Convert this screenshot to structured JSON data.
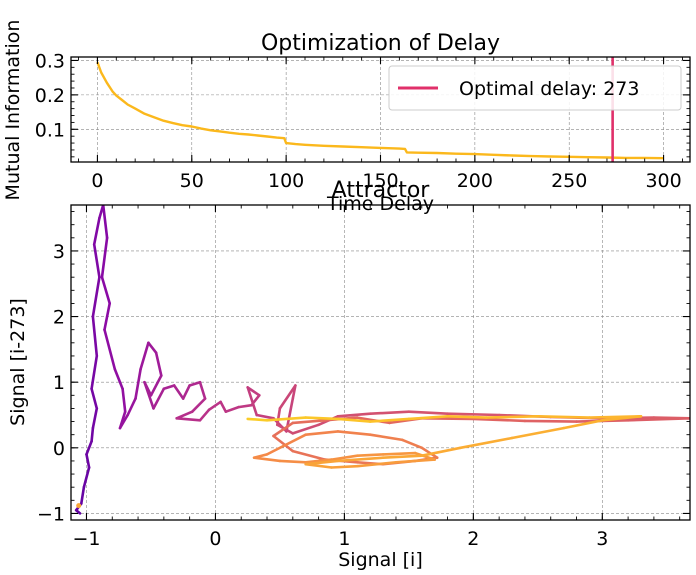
{
  "chart_data": [
    {
      "type": "line",
      "title": "Optimization of Delay",
      "xlabel": "Time Delay",
      "ylabel": "Mutual Information",
      "xlim": [
        -14,
        314
      ],
      "ylim": [
        0.005,
        0.31
      ],
      "xticks": [
        0,
        50,
        100,
        150,
        200,
        250,
        300
      ],
      "yticks": [
        0.1,
        0.2,
        0.3
      ],
      "ytick_labels": [
        "0.1",
        "0.2",
        "0.3"
      ],
      "grid": true,
      "legend_position": "top-right",
      "series": [
        {
          "color": "#fbb81c",
          "x": [
            0,
            2,
            5,
            8,
            10,
            13,
            16,
            20,
            25,
            30,
            35,
            40,
            45,
            50,
            55,
            60,
            65,
            70,
            75,
            80,
            85,
            90,
            95,
            99,
            100,
            105,
            110,
            120,
            130,
            140,
            150,
            160,
            163,
            164,
            170,
            180,
            190,
            200,
            210,
            220,
            230,
            240,
            250,
            260,
            270,
            280,
            290,
            300
          ],
          "y": [
            0.295,
            0.265,
            0.235,
            0.21,
            0.198,
            0.185,
            0.172,
            0.16,
            0.145,
            0.135,
            0.125,
            0.118,
            0.112,
            0.108,
            0.102,
            0.097,
            0.094,
            0.09,
            0.087,
            0.085,
            0.082,
            0.079,
            0.076,
            0.074,
            0.06,
            0.057,
            0.055,
            0.052,
            0.05,
            0.048,
            0.046,
            0.044,
            0.043,
            0.033,
            0.032,
            0.031,
            0.029,
            0.028,
            0.026,
            0.024,
            0.022,
            0.021,
            0.02,
            0.019,
            0.018,
            0.017,
            0.017,
            0.016
          ]
        }
      ],
      "vline": {
        "x": 273,
        "color": "#e0306a",
        "label": "Optimal delay: 273"
      }
    },
    {
      "type": "line",
      "title": "Attractor",
      "xlabel": "Signal [i]",
      "ylabel": "Signal [i-273]",
      "xlim": [
        -1.12,
        3.68
      ],
      "ylim": [
        -1.1,
        3.7
      ],
      "xticks": [
        -1,
        0,
        1,
        2,
        3
      ],
      "yticks": [
        -1,
        0,
        1,
        2,
        3
      ],
      "grid": true,
      "colormap": "plasma",
      "trajectory": [
        [
          -1.05,
          -1.0
        ],
        [
          -1.08,
          -0.95
        ],
        [
          -1.04,
          -0.85
        ],
        [
          -1.02,
          -0.6
        ],
        [
          -0.98,
          -0.3
        ],
        [
          -1.0,
          -0.1
        ],
        [
          -0.96,
          0.1
        ],
        [
          -0.95,
          0.3
        ],
        [
          -0.92,
          0.6
        ],
        [
          -0.96,
          0.9
        ],
        [
          -0.92,
          1.4
        ],
        [
          -0.95,
          2.0
        ],
        [
          -0.9,
          2.6
        ],
        [
          -0.94,
          3.1
        ],
        [
          -0.9,
          3.5
        ],
        [
          -0.87,
          3.7
        ],
        [
          -0.84,
          3.2
        ],
        [
          -0.88,
          2.6
        ],
        [
          -0.82,
          2.2
        ],
        [
          -0.86,
          1.8
        ],
        [
          -0.78,
          1.2
        ],
        [
          -0.72,
          0.9
        ],
        [
          -0.7,
          0.55
        ],
        [
          -0.74,
          0.3
        ],
        [
          -0.68,
          0.5
        ],
        [
          -0.62,
          0.75
        ],
        [
          -0.58,
          1.2
        ],
        [
          -0.52,
          1.6
        ],
        [
          -0.46,
          1.45
        ],
        [
          -0.42,
          1.1
        ],
        [
          -0.5,
          0.8
        ],
        [
          -0.55,
          1.0
        ],
        [
          -0.48,
          0.6
        ],
        [
          -0.4,
          0.9
        ],
        [
          -0.32,
          0.95
        ],
        [
          -0.25,
          0.75
        ],
        [
          -0.2,
          0.95
        ],
        [
          -0.12,
          1.0
        ],
        [
          -0.08,
          0.75
        ],
        [
          -0.18,
          0.55
        ],
        [
          -0.3,
          0.45
        ],
        [
          -0.12,
          0.42
        ],
        [
          -0.05,
          0.58
        ],
        [
          0.04,
          0.7
        ],
        [
          0.08,
          0.55
        ],
        [
          0.18,
          0.62
        ],
        [
          0.28,
          0.65
        ],
        [
          0.34,
          0.8
        ],
        [
          0.25,
          0.92
        ],
        [
          0.32,
          0.5
        ],
        [
          0.45,
          0.45
        ],
        [
          0.55,
          0.25
        ],
        [
          0.6,
          0.75
        ],
        [
          0.62,
          0.95
        ],
        [
          0.5,
          0.6
        ],
        [
          0.48,
          0.35
        ],
        [
          0.6,
          0.22
        ],
        [
          0.8,
          0.35
        ],
        [
          0.95,
          0.48
        ],
        [
          1.2,
          0.52
        ],
        [
          1.5,
          0.55
        ],
        [
          1.8,
          0.52
        ],
        [
          2.2,
          0.5
        ],
        [
          2.6,
          0.47
        ],
        [
          3.0,
          0.45
        ],
        [
          3.4,
          0.46
        ],
        [
          3.68,
          0.45
        ],
        [
          3.2,
          0.42
        ],
        [
          2.8,
          0.4
        ],
        [
          2.4,
          0.41
        ],
        [
          2.0,
          0.44
        ],
        [
          1.6,
          0.45
        ],
        [
          1.35,
          0.38
        ],
        [
          1.1,
          0.46
        ],
        [
          0.85,
          0.42
        ],
        [
          0.6,
          0.38
        ],
        [
          0.45,
          0.18
        ],
        [
          0.6,
          -0.05
        ],
        [
          0.85,
          -0.18
        ],
        [
          1.1,
          -0.22
        ],
        [
          1.3,
          -0.25
        ],
        [
          1.55,
          -0.2
        ],
        [
          1.72,
          -0.15
        ],
        [
          1.6,
          0.0
        ],
        [
          1.45,
          0.12
        ],
        [
          1.2,
          0.2
        ],
        [
          0.95,
          0.25
        ],
        [
          0.7,
          0.2
        ],
        [
          0.55,
          0.05
        ],
        [
          0.4,
          -0.1
        ],
        [
          0.3,
          -0.15
        ],
        [
          0.5,
          -0.2
        ],
        [
          0.7,
          -0.22
        ],
        [
          0.9,
          -0.18
        ],
        [
          1.1,
          -0.12
        ],
        [
          1.3,
          -0.1
        ],
        [
          1.55,
          -0.08
        ],
        [
          1.7,
          -0.18
        ],
        [
          1.4,
          -0.22
        ],
        [
          1.1,
          -0.28
        ],
        [
          0.9,
          -0.3
        ],
        [
          0.7,
          -0.25
        ],
        [
          0.95,
          -0.2
        ],
        [
          1.3,
          -0.15
        ],
        [
          1.6,
          -0.12
        ],
        [
          1.9,
          0.0
        ],
        [
          2.3,
          0.15
        ],
        [
          2.7,
          0.3
        ],
        [
          3.0,
          0.42
        ],
        [
          3.3,
          0.48
        ],
        [
          2.9,
          0.46
        ],
        [
          2.5,
          0.48
        ],
        [
          2.1,
          0.46
        ],
        [
          1.8,
          0.48
        ],
        [
          1.5,
          0.44
        ],
        [
          1.2,
          0.4
        ],
        [
          0.95,
          0.44
        ],
        [
          0.7,
          0.46
        ],
        [
          0.4,
          0.42
        ],
        [
          0.25,
          0.44
        ]
      ]
    }
  ]
}
